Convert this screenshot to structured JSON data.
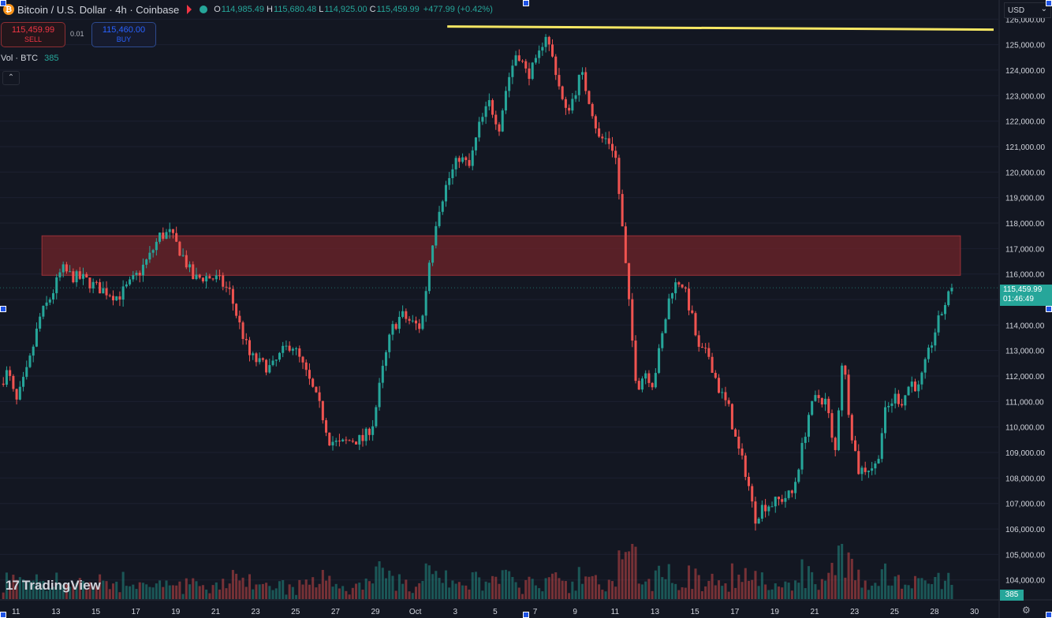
{
  "header": {
    "coin_glyph": "₿",
    "title": "Bitcoin / U.S. Dollar · 4h · Coinbase",
    "ohlc": {
      "open_label": "O",
      "open": "114,985.49",
      "high_label": "H",
      "high": "115,680.48",
      "low_label": "L",
      "low": "114,925.00",
      "close_label": "C",
      "close": "115,459.99",
      "change": "+477.99 (+0.42%)"
    }
  },
  "trade": {
    "sell_price": "115,459.99",
    "sell_label": "SELL",
    "spread": "0.01",
    "buy_price": "115,460.00",
    "buy_label": "BUY"
  },
  "volume_legend": {
    "label": "Vol · BTC",
    "value": "385"
  },
  "collapse_glyph": "⌃",
  "currency": "USD",
  "price_tag": {
    "price": "115,459.99",
    "countdown": "01:46:49"
  },
  "volume_tag": "385",
  "brand": {
    "mark": "17",
    "name": "TradingView"
  },
  "settings_glyph": "⚙",
  "colors": {
    "background": "#131722",
    "up": "#26a69a",
    "down": "#ef5350",
    "resistance_line": "#f5e663",
    "zone": "#6b2329",
    "text": "#d1d4dc"
  },
  "chart_data": {
    "type": "candlestick",
    "title": "Bitcoin / U.S. Dollar · 4h · Coinbase",
    "y_ticks": [
      104000,
      105000,
      106000,
      107000,
      108000,
      109000,
      110000,
      111000,
      112000,
      113000,
      114000,
      115000,
      116000,
      117000,
      118000,
      119000,
      120000,
      121000,
      122000,
      123000,
      124000,
      125000,
      126000
    ],
    "y_tick_labels": [
      "104,000.00",
      "105,000.00",
      "106,000.00",
      "107,000.00",
      "108,000.00",
      "109,000.00",
      "110,000.00",
      "111,000.00",
      "112,000.00",
      "113,000.00",
      "114,000.00",
      "115,000.00",
      "116,000.00",
      "117,000.00",
      "118,000.00",
      "119,000.00",
      "120,000.00",
      "121,000.00",
      "122,000.00",
      "123,000.00",
      "124,000.00",
      "125,000.00",
      "126,000.00"
    ],
    "ylim": [
      103250,
      126750
    ],
    "x_labels": [
      "11",
      "13",
      "15",
      "17",
      "19",
      "21",
      "23",
      "25",
      "27",
      "29",
      "Oct",
      "3",
      "5",
      "7",
      "9",
      "11",
      "13",
      "15",
      "17",
      "19",
      "21",
      "23",
      "25",
      "28",
      "30"
    ],
    "x_label_days": [
      11,
      13,
      15,
      17,
      19,
      21,
      23,
      25,
      27,
      29,
      31,
      33,
      35,
      37,
      39,
      41,
      43,
      45,
      47,
      49,
      51,
      53,
      55,
      57,
      59
    ],
    "xlim": [
      10.2,
      60.2
    ],
    "resistance_level": 125650,
    "supply_zone": {
      "from_day": 12.3,
      "to_day": 58.3,
      "low": 115950,
      "high": 117500
    },
    "current_price": 115459.99,
    "price_path": [
      [
        10.2,
        111700
      ],
      [
        10.6,
        112200
      ],
      [
        11.0,
        110900
      ],
      [
        11.6,
        112300
      ],
      [
        12.2,
        114300
      ],
      [
        12.8,
        115200
      ],
      [
        13.3,
        116200
      ],
      [
        13.8,
        115900
      ],
      [
        14.4,
        115800
      ],
      [
        15.0,
        115500
      ],
      [
        15.6,
        115300
      ],
      [
        16.1,
        115100
      ],
      [
        16.7,
        115600
      ],
      [
        17.2,
        116100
      ],
      [
        17.7,
        116700
      ],
      [
        18.2,
        117500
      ],
      [
        18.7,
        117600
      ],
      [
        19.3,
        116800
      ],
      [
        19.9,
        115800
      ],
      [
        20.5,
        115900
      ],
      [
        21.1,
        115800
      ],
      [
        21.7,
        115300
      ],
      [
        22.2,
        114000
      ],
      [
        22.7,
        112800
      ],
      [
        23.2,
        112500
      ],
      [
        23.8,
        112300
      ],
      [
        24.3,
        112900
      ],
      [
        24.8,
        113300
      ],
      [
        25.3,
        112500
      ],
      [
        25.8,
        111600
      ],
      [
        26.3,
        110600
      ],
      [
        26.7,
        109500
      ],
      [
        27.2,
        109300
      ],
      [
        27.8,
        109500
      ],
      [
        28.4,
        109500
      ],
      [
        28.9,
        110200
      ],
      [
        29.3,
        112000
      ],
      [
        29.8,
        113800
      ],
      [
        30.3,
        114400
      ],
      [
        30.8,
        114100
      ],
      [
        31.3,
        113900
      ],
      [
        31.7,
        116500
      ],
      [
        32.1,
        118400
      ],
      [
        32.6,
        119600
      ],
      [
        33.2,
        120600
      ],
      [
        33.7,
        120200
      ],
      [
        34.2,
        121800
      ],
      [
        34.7,
        122700
      ],
      [
        35.2,
        121800
      ],
      [
        35.6,
        123500
      ],
      [
        36.1,
        124800
      ],
      [
        36.6,
        123800
      ],
      [
        37.1,
        124300
      ],
      [
        37.5,
        125500
      ],
      [
        38.0,
        124100
      ],
      [
        38.5,
        122300
      ],
      [
        38.9,
        122900
      ],
      [
        39.3,
        123900
      ],
      [
        39.8,
        122600
      ],
      [
        40.2,
        121300
      ],
      [
        40.6,
        121300
      ],
      [
        41.0,
        120800
      ],
      [
        41.4,
        117500
      ],
      [
        41.8,
        113900
      ],
      [
        42.1,
        111500
      ],
      [
        42.5,
        112200
      ],
      [
        42.9,
        111700
      ],
      [
        43.3,
        113300
      ],
      [
        43.8,
        115400
      ],
      [
        44.3,
        115800
      ],
      [
        44.8,
        114500
      ],
      [
        45.2,
        113000
      ],
      [
        45.7,
        112800
      ],
      [
        46.2,
        111500
      ],
      [
        46.7,
        110700
      ],
      [
        47.1,
        109300
      ],
      [
        47.6,
        108100
      ],
      [
        48.0,
        106400
      ],
      [
        48.4,
        106900
      ],
      [
        48.9,
        107000
      ],
      [
        49.4,
        107200
      ],
      [
        49.9,
        107400
      ],
      [
        50.3,
        108900
      ],
      [
        50.7,
        110500
      ],
      [
        51.1,
        111200
      ],
      [
        51.6,
        111000
      ],
      [
        52.0,
        108700
      ],
      [
        52.4,
        112900
      ],
      [
        52.8,
        110000
      ],
      [
        53.2,
        108300
      ],
      [
        53.7,
        108400
      ],
      [
        54.1,
        108500
      ],
      [
        54.5,
        110500
      ],
      [
        55.0,
        111200
      ],
      [
        55.4,
        111000
      ],
      [
        55.8,
        111800
      ],
      [
        56.2,
        111500
      ],
      [
        56.6,
        112600
      ],
      [
        57.0,
        113700
      ],
      [
        57.5,
        114800
      ],
      [
        57.9,
        115460
      ]
    ]
  }
}
